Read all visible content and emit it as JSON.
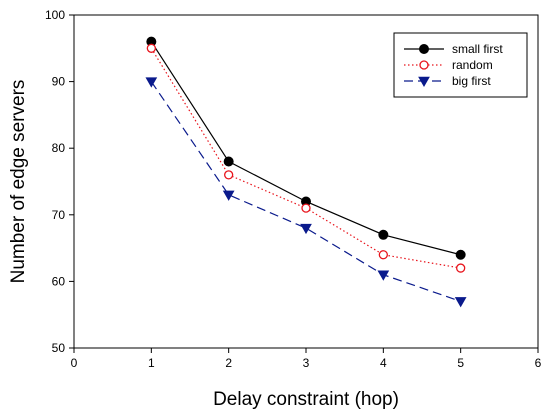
{
  "chart_data": {
    "type": "line",
    "xlabel": "Delay constraint (hop)",
    "ylabel": "Number of edge servers",
    "xlim": [
      0,
      6
    ],
    "ylim": [
      50,
      100
    ],
    "xticks": [
      0,
      1,
      2,
      3,
      4,
      5,
      6
    ],
    "yticks": [
      50,
      60,
      70,
      80,
      90,
      100
    ],
    "grid": false,
    "legend_position": "top-right",
    "x": [
      1,
      2,
      3,
      4,
      5
    ],
    "series": [
      {
        "name": "small first",
        "values": [
          96,
          78,
          72,
          67,
          64
        ],
        "color": "#000000",
        "line_style": "solid",
        "marker": "filled-circle"
      },
      {
        "name": "random",
        "values": [
          95,
          76,
          71,
          64,
          62
        ],
        "color": "#e8141c",
        "line_style": "dotted",
        "marker": "hollow-circle"
      },
      {
        "name": "big first",
        "values": [
          90,
          73,
          68,
          61,
          57
        ],
        "color": "#0a1a8c",
        "line_style": "dashed",
        "marker": "filled-triangle-down"
      }
    ]
  }
}
